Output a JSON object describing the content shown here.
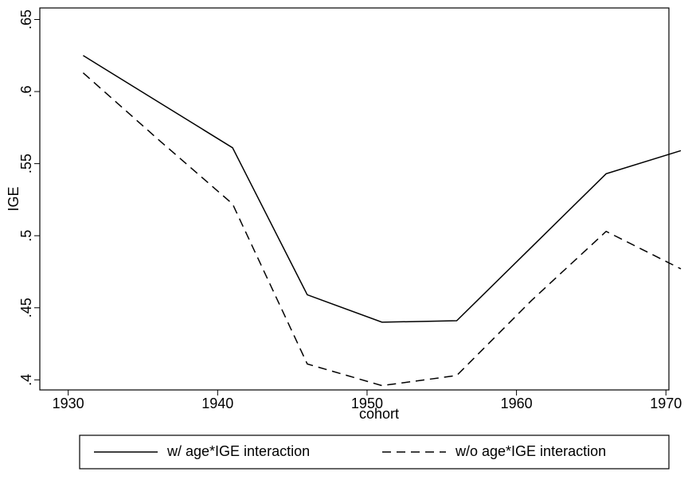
{
  "chart_data": {
    "type": "line",
    "x_label": "cohort",
    "y_label": "IGE",
    "x": [
      1931,
      1936,
      1941,
      1946,
      1951,
      1956,
      1961,
      1966,
      1971
    ],
    "series": [
      {
        "name": "w/ age*IGE interaction",
        "color": "#000000",
        "dash": "solid",
        "values": [
          0.625,
          0.593,
          0.561,
          0.459,
          0.44,
          0.441,
          0.492,
          0.543,
          0.559
        ]
      },
      {
        "name": "w/o age*IGE interaction",
        "color": "#000000",
        "dash": "dashed",
        "values": [
          0.613,
          0.567,
          0.522,
          0.411,
          0.396,
          0.403,
          0.455,
          0.503,
          0.477
        ]
      }
    ],
    "xlim": [
      1928.1,
      1970.2
    ],
    "ylim": [
      0.393,
      0.658
    ],
    "xticks": [
      1930,
      1940,
      1950,
      1960,
      1970
    ],
    "yticks": [
      {
        "value": 0.4,
        "label": ".4"
      },
      {
        "value": 0.45,
        "label": ".45"
      },
      {
        "value": 0.5,
        "label": ".5"
      },
      {
        "value": 0.55,
        "label": ".55"
      },
      {
        "value": 0.6,
        "label": ".6"
      },
      {
        "value": 0.65,
        "label": ".65"
      }
    ],
    "legend": "bottom"
  }
}
